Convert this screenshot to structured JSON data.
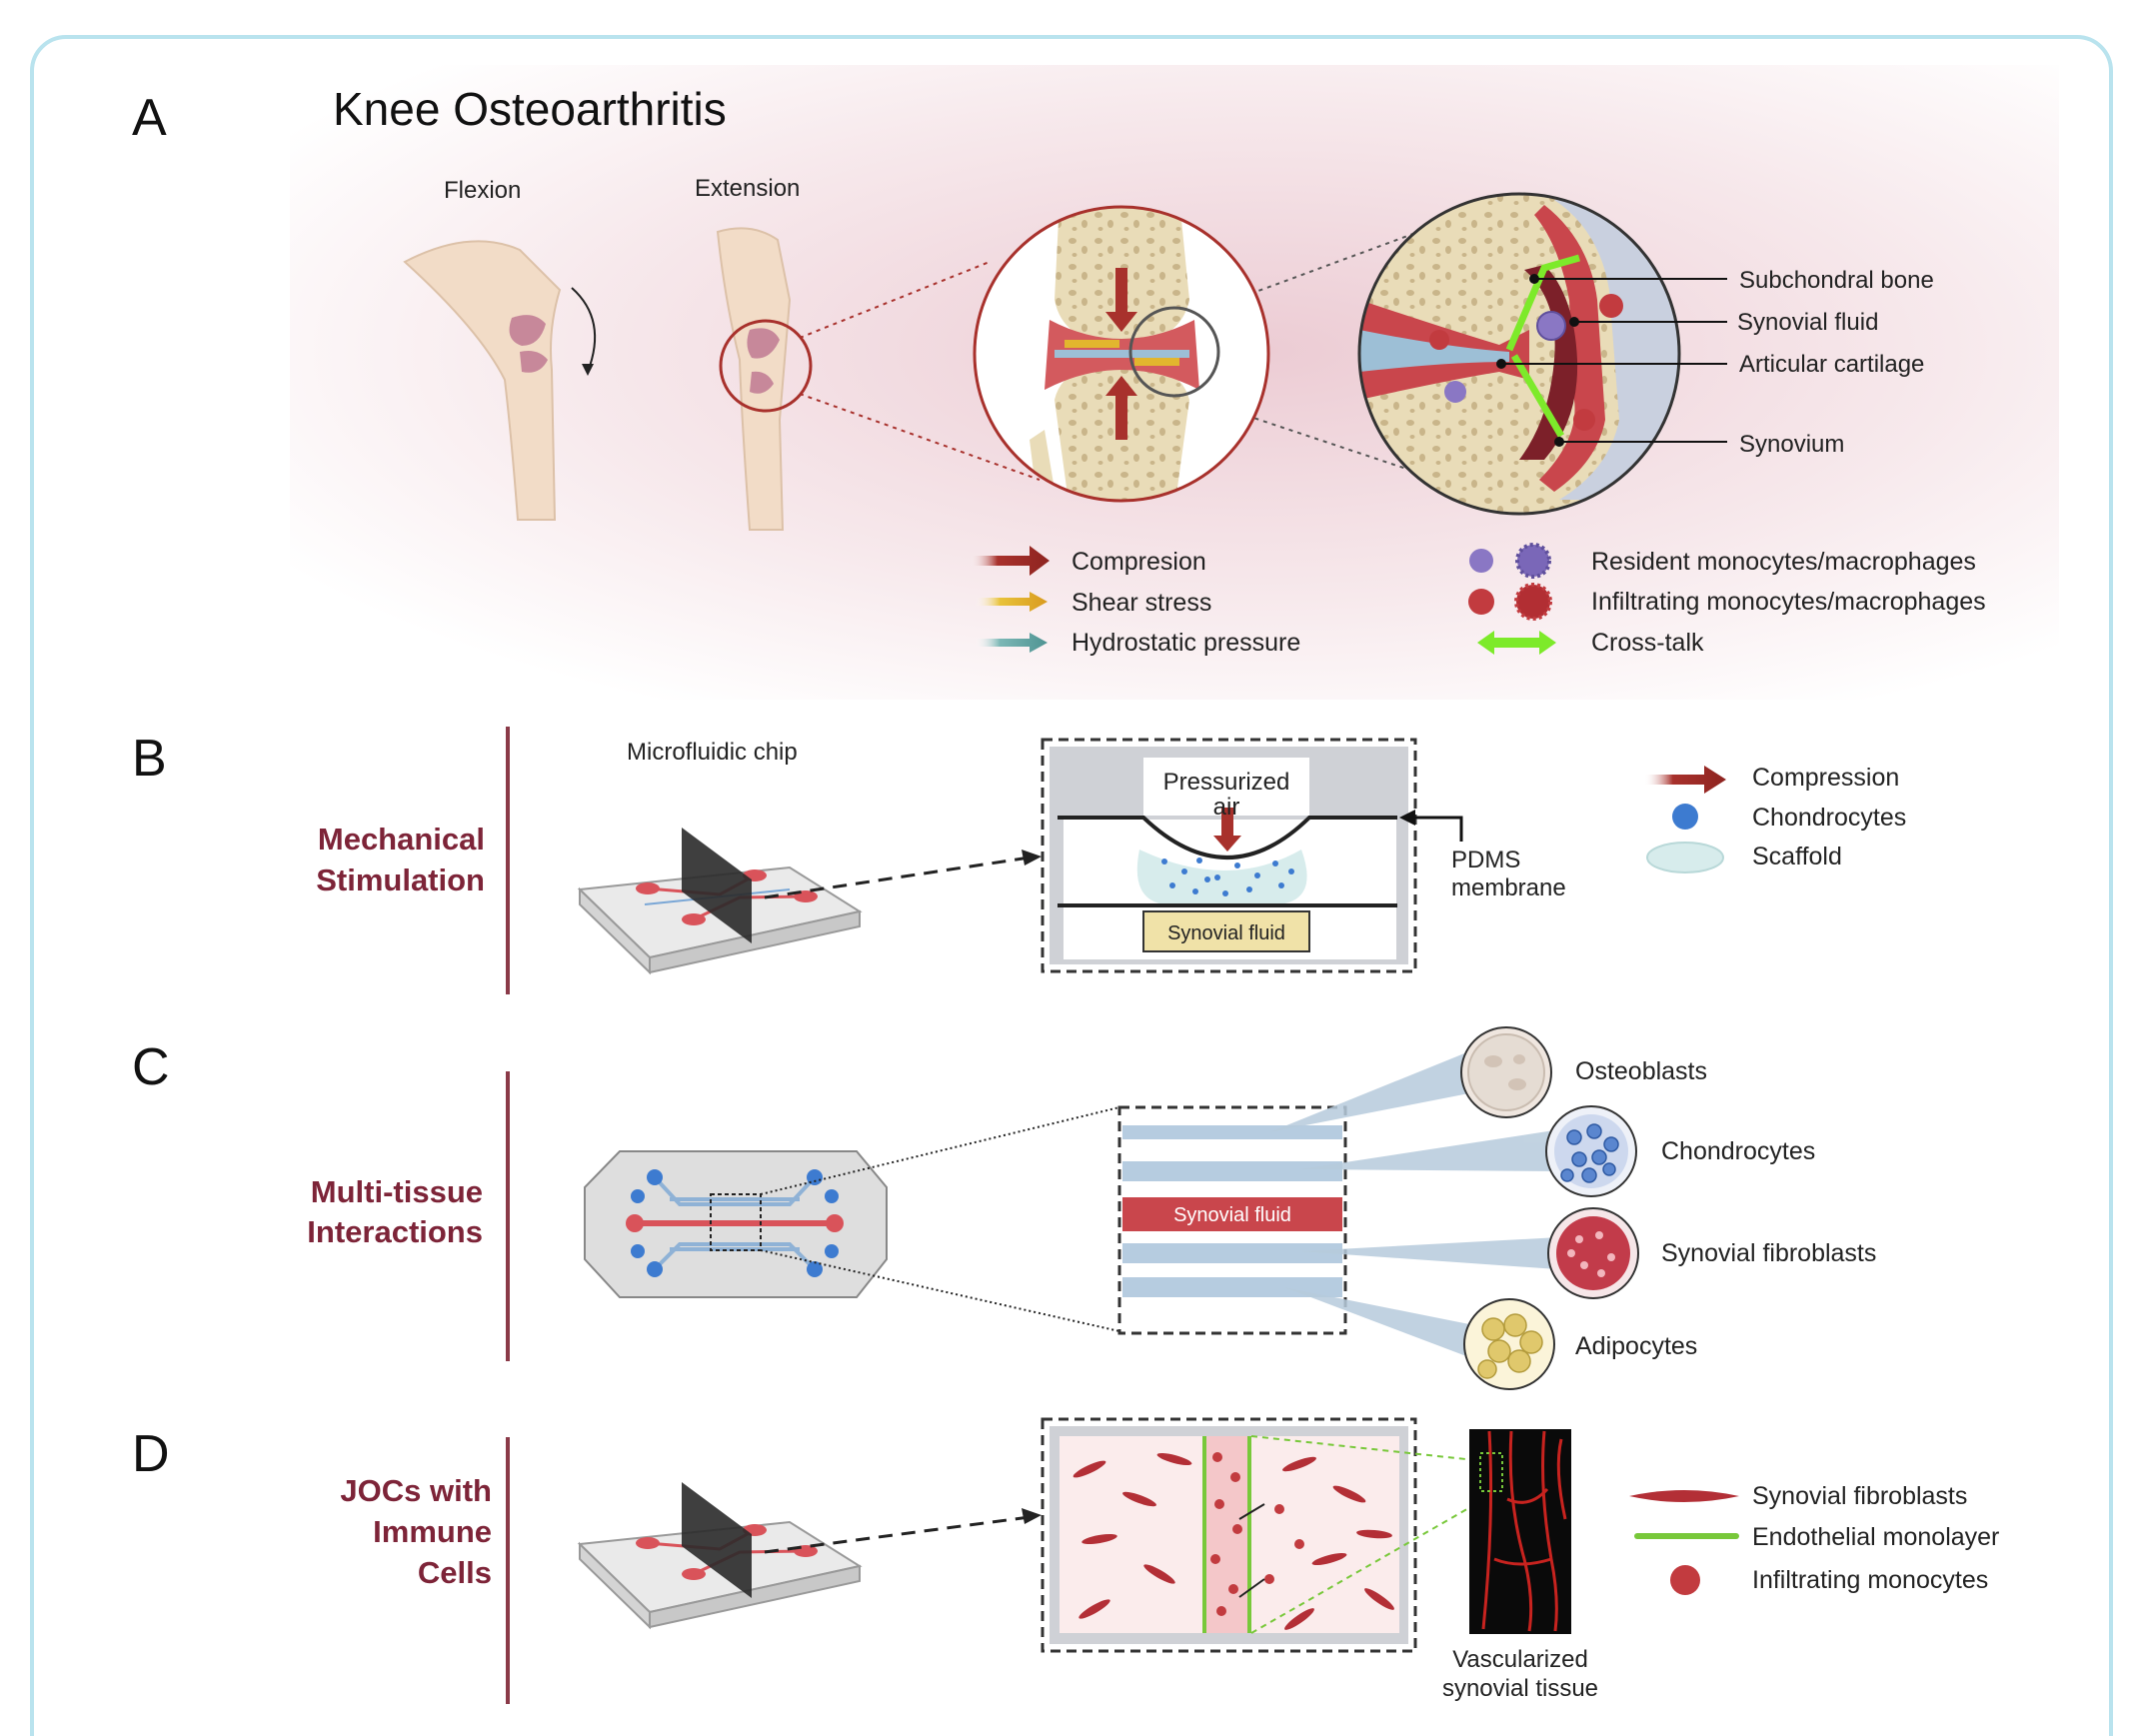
{
  "panels": {
    "a": {
      "letter": "A",
      "title": "Knee Osteoarthritis",
      "flexion": "Flexion",
      "extension": "Extension",
      "callouts": {
        "subchondral": "Subchondral bone",
        "synovial_fluid": "Synovial fluid",
        "cartilage": "Articular cartilage",
        "synovium": "Synovium"
      },
      "legend": {
        "compression": "Compresion",
        "shear": "Shear stress",
        "hydrostatic": "Hydrostatic pressure",
        "resident": "Resident monocytes/macrophages",
        "infiltrating": "Infiltrating monocytes/macrophages",
        "crosstalk": "Cross-talk"
      }
    },
    "b": {
      "letter": "B",
      "section": [
        "Mechanical",
        "Stimulation"
      ],
      "chip_label": "Microfluidic chip",
      "air": [
        "Pressurized",
        "air"
      ],
      "fluid": "Synovial fluid",
      "membrane": [
        "PDMS",
        "membrane"
      ],
      "legend": {
        "compression": "Compression",
        "chondrocytes": "Chondrocytes",
        "scaffold": "Scaffold"
      }
    },
    "c": {
      "letter": "C",
      "section": [
        "Multi-tissue",
        "Interactions"
      ],
      "fluid": "Synovial fluid",
      "cells": {
        "osteoblasts": "Osteoblasts",
        "chondrocytes": "Chondrocytes",
        "fibroblasts": "Synovial fibroblasts",
        "adipocytes": "Adipocytes"
      }
    },
    "d": {
      "letter": "D",
      "section": [
        "JOCs with",
        "Immune",
        "Cells"
      ],
      "vascular": [
        "Vascularized",
        "synovial tissue"
      ],
      "legend": {
        "fibroblasts": "Synovial fibroblasts",
        "endothelial": "Endothelial monolayer",
        "monocytes": "Infiltrating monocytes"
      }
    }
  },
  "colors": {
    "frame": "#b9e3ee",
    "section": "#7d2438",
    "compression": "#a8312c",
    "shear": "#e0b12a",
    "hydrostatic": "#5fa3a3",
    "crosstalk": "#7dea2a",
    "channel_blue": "#9dbbd3",
    "synovial_red": "#c9464c"
  }
}
